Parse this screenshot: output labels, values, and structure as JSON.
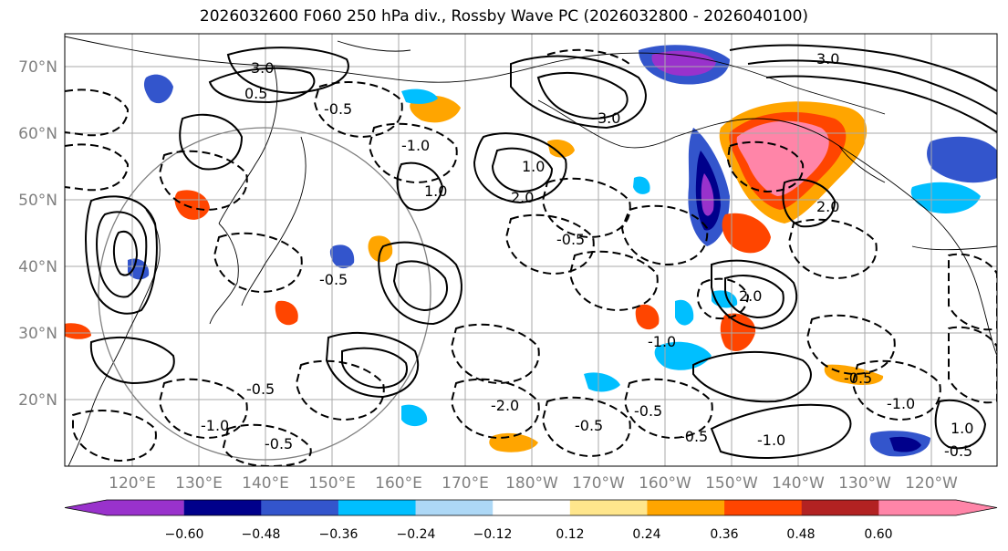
{
  "title": "2026032600 F060 250 hPa div., Rossby Wave PC (2026032800 - 2026040100)",
  "lat_labels": [
    "70°N",
    "60°N",
    "50°N",
    "40°N",
    "30°N",
    "20°N"
  ],
  "lon_labels": [
    "120°E",
    "130°E",
    "140°E",
    "150°E",
    "160°E",
    "170°E",
    "180°W",
    "170°W",
    "160°W",
    "150°W",
    "140°W",
    "130°W",
    "120°W"
  ],
  "colorbar": {
    "tick_labels": [
      "−0.60",
      "−0.48",
      "−0.36",
      "−0.24",
      "−0.12",
      "0.12",
      "0.24",
      "0.36",
      "0.48",
      "0.60"
    ],
    "colors": [
      "#9932CC",
      "#00008B",
      "#3355CC",
      "#00BFFF",
      "#ADD8F6",
      "#FFFFFF",
      "#FFE68C",
      "#FFA500",
      "#FF4500",
      "#B22222",
      "#FF85A8"
    ]
  },
  "contour_labels": [
    "3.0",
    "2.0",
    "0.5",
    "-0.5",
    "-1.0",
    "1.0",
    "3.0",
    "-0.5",
    "2.0",
    "1.0",
    "-0.5",
    "-1.0",
    "-0.5",
    "-2.0",
    "-0.5",
    "-0.5",
    "-1.0",
    "-0.5",
    "2.0",
    "-1.0",
    "-0.5",
    "3.0",
    "-1.0",
    "-0.5",
    "1.0",
    "-0.5"
  ]
}
